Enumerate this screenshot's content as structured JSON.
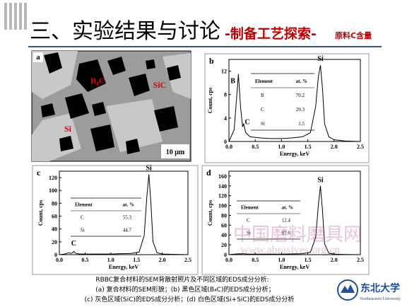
{
  "slide": {
    "title_main": "三、实验结果与讨论",
    "title_sub": "-制备工艺探索-",
    "title_small": "原料C含量",
    "caption": [
      "RBBC复合材料的SEM背散射照片及不同区域的EDS成分分析:",
      "(a) 复合材料的SEM形貌；(b) 黑色区域(B₄C)的EDS成分分析；",
      "(c) 灰色区域(SiC)的EDS成分分析；(d) 白色区域(Si+SiC)的EDS成分分析"
    ],
    "watermark_name": "中国磨料磨具网",
    "watermark_url": "www.abrasives.org.cn",
    "logo_name": "东北大学",
    "logo_en": "Northeastern University"
  },
  "sem_image": {
    "panel": "a",
    "labels": [
      "B₄C",
      "SiC",
      "Si"
    ],
    "scale_bar": "10 μm"
  },
  "chart_data": [
    {
      "type": "line",
      "panel": "b",
      "x_label": "Energy, keV",
      "y_label": "Count, cps",
      "color": "#000000",
      "x": [
        0,
        0.1,
        0.15,
        0.18,
        0.22,
        0.26,
        0.28,
        0.32,
        0.4,
        0.6,
        0.8,
        1.0,
        1.2,
        1.4,
        1.55,
        1.65,
        1.7,
        1.74,
        1.78,
        1.82,
        1.9,
        2.0,
        2.2,
        2.5
      ],
      "values": [
        0,
        2,
        8,
        11.5,
        6,
        2.5,
        3,
        1.5,
        0.8,
        0.6,
        0.5,
        0.5,
        0.6,
        0.8,
        1.5,
        6,
        11,
        13,
        9,
        3,
        0.8,
        0.3,
        0.1,
        0
      ],
      "xlim": [
        0,
        2.5
      ],
      "xticks": [
        {
          "value": 0,
          "label": "0.0"
        },
        0.5,
        {
          "value": 1,
          "label": "1.0"
        },
        1.5,
        {
          "value": 2,
          "label": "2.0"
        },
        2.5
      ],
      "ylim": [
        0,
        14
      ],
      "yticks": [
        0,
        4,
        8,
        12
      ],
      "annotations": [
        "B",
        "C",
        "Si"
      ],
      "table": {
        "header": [
          "Element",
          "at. %"
        ],
        "rows": [
          [
            "B",
            70.2
          ],
          [
            "C",
            29.3
          ],
          [
            "Si",
            1.5
          ]
        ]
      }
    },
    {
      "type": "line",
      "panel": "c",
      "x_label": "Energy, keV",
      "y_label": "Count, cps",
      "color": "#000000",
      "x": [
        0,
        0.1,
        0.15,
        0.18,
        0.22,
        0.26,
        0.28,
        0.32,
        0.4,
        0.6,
        0.8,
        1.0,
        1.2,
        1.4,
        1.55,
        1.65,
        1.7,
        1.74,
        1.78,
        1.82,
        1.9,
        2.0,
        2.2,
        2.5
      ],
      "values": [
        0,
        1,
        2,
        3,
        2,
        3,
        5,
        2,
        1,
        1,
        1,
        1,
        1.5,
        2,
        4,
        30,
        90,
        125,
        80,
        20,
        3,
        1,
        0.5,
        0
      ],
      "xlim": [
        0,
        2.5
      ],
      "xticks": [
        {
          "value": 0,
          "label": "0.0"
        },
        0.5,
        {
          "value": 1,
          "label": "1.0"
        },
        1.5,
        {
          "value": 2,
          "label": "2.0"
        },
        2.5
      ],
      "ylim": [
        0,
        130
      ],
      "yticks": [
        0,
        20,
        40,
        60,
        80,
        100,
        120
      ],
      "annotations": [
        "C",
        "Si"
      ],
      "table": {
        "header": [
          "Element",
          "at. %"
        ],
        "rows": [
          [
            "C",
            55.3
          ],
          [
            "Si",
            44.7
          ]
        ]
      }
    },
    {
      "type": "line",
      "panel": "d",
      "x_label": "Energy, keV",
      "y_label": "Count, cps",
      "color": "#000000",
      "x": [
        0,
        0.1,
        0.15,
        0.18,
        0.22,
        0.26,
        0.28,
        0.32,
        0.4,
        0.6,
        0.8,
        1.0,
        1.2,
        1.4,
        1.55,
        1.65,
        1.7,
        1.74,
        1.78,
        1.82,
        1.9,
        2.0,
        2.2,
        2.5
      ],
      "values": [
        0,
        1,
        1.5,
        2,
        1.5,
        2,
        2,
        1.5,
        1,
        1,
        1,
        1,
        1.5,
        2,
        5,
        35,
        100,
        140,
        90,
        22,
        3,
        1,
        0.5,
        0
      ],
      "xlim": [
        0,
        2.5
      ],
      "xticks": [
        {
          "value": 0,
          "label": "0.0"
        },
        0.5,
        {
          "value": 1,
          "label": "1.0"
        },
        1.5,
        {
          "value": 2,
          "label": "2.0"
        },
        2.5
      ],
      "ylim": [
        0,
        170
      ],
      "yticks": [
        0,
        20,
        40,
        60,
        80,
        100,
        120,
        140,
        160
      ],
      "annotations": [
        "Si"
      ],
      "table": {
        "header": [
          "Element",
          "at. %"
        ],
        "rows": [
          [
            "C",
            12.4
          ],
          [
            "Si",
            87.6
          ]
        ]
      }
    }
  ]
}
